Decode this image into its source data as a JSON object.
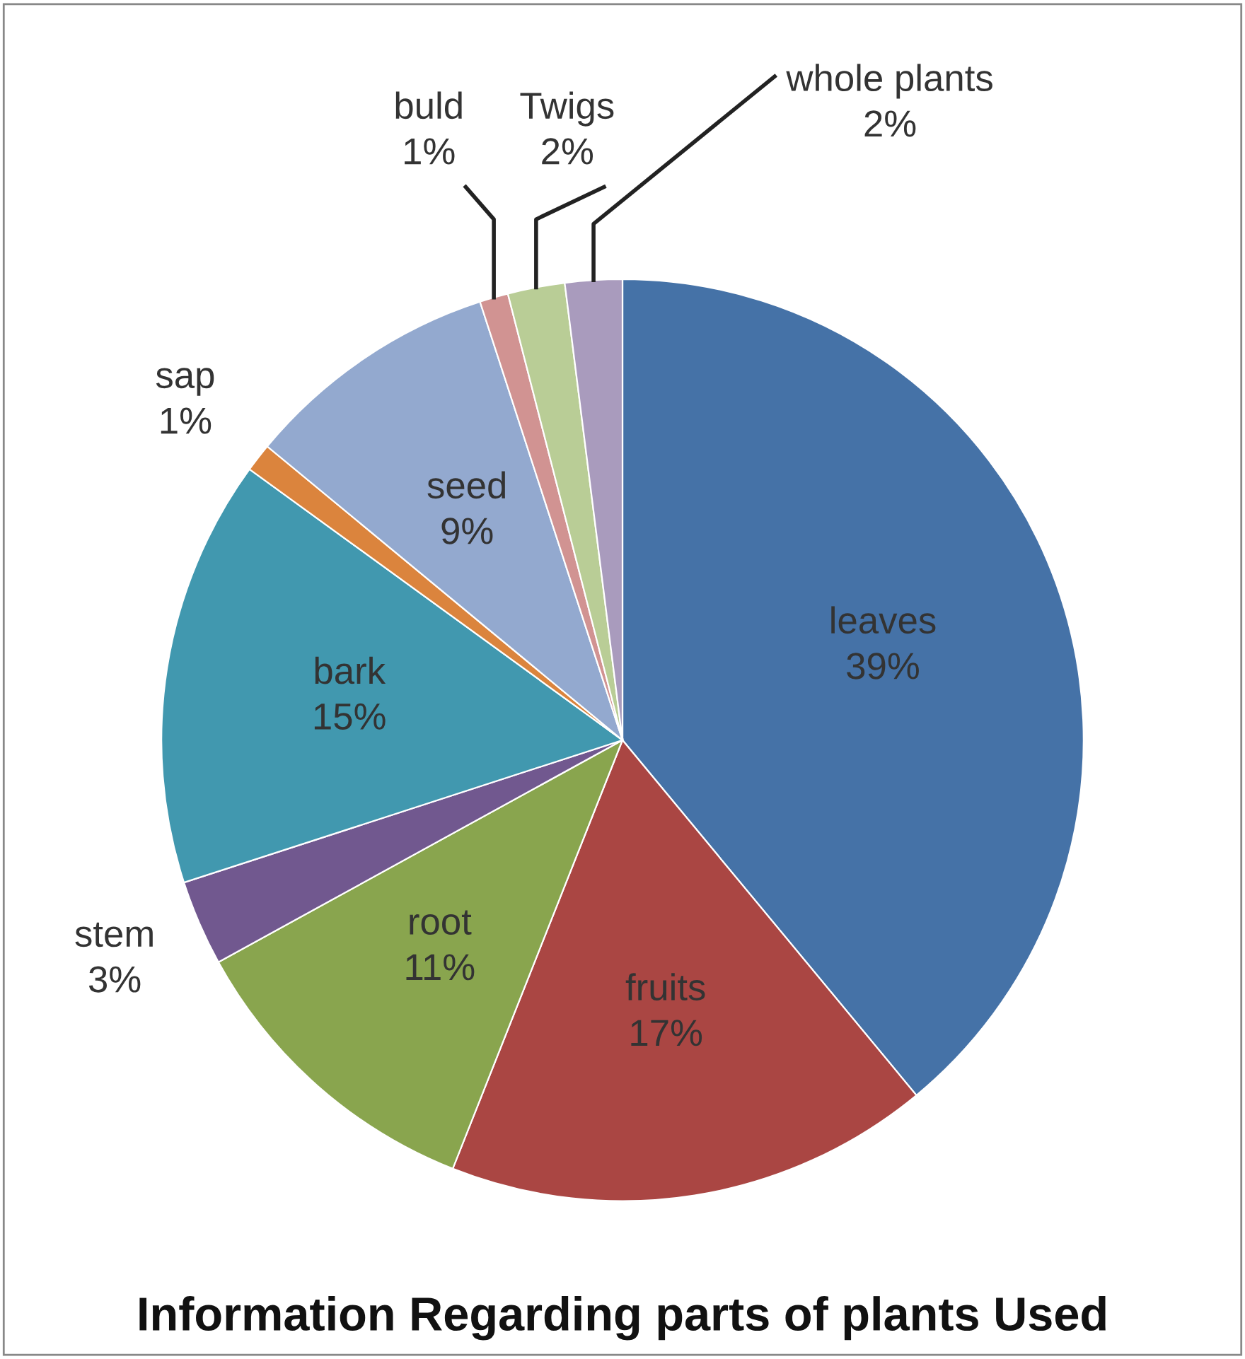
{
  "chart_data": {
    "type": "pie",
    "title": "Information Regarding parts of plants Used",
    "categories": [
      "leaves",
      "fruits",
      "root",
      "stem",
      "bark",
      "sap",
      "seed",
      "buld",
      "Twigs",
      "whole plants"
    ],
    "values": [
      39,
      17,
      11,
      3,
      15,
      1,
      9,
      1,
      2,
      2
    ],
    "value_labels": [
      "39%",
      "17%",
      "11%",
      "3%",
      "15%",
      "1%",
      "9%",
      "1%",
      "2%",
      "2%"
    ],
    "colors": [
      "#4572a7",
      "#aa4643",
      "#89a54e",
      "#71588f",
      "#4198af",
      "#db843d",
      "#93a9cf",
      "#d19392",
      "#b9cd96",
      "#a99bbd"
    ],
    "legend": false
  }
}
